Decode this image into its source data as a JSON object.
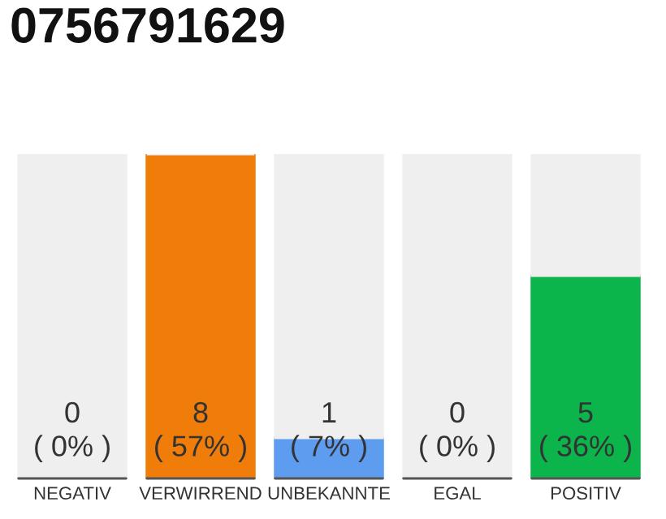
{
  "chart_data": {
    "type": "bar",
    "title": "0756791629",
    "stacked": true,
    "categories": [
      "NEGATIV",
      "VERWIRREND",
      "UNBEKANNTE",
      "EGAL",
      "POSITIV"
    ],
    "series": [
      {
        "colors": [
          "#555555",
          "#f07d0a",
          "#5e9cf0",
          "#555555",
          "#0bb54b"
        ],
        "values": [
          0,
          8,
          1,
          0,
          5
        ],
        "value_labels": [
          "0\n( 0% )",
          "8\n( 57% )",
          "1\n( 7% )",
          "0\n( 0% )",
          "5\n( 36% )"
        ]
      },
      {
        "color": "#efefef",
        "values": [
          8,
          0,
          7,
          8,
          3
        ]
      }
    ],
    "ylim": [
      0,
      8
    ],
    "tick_labels": "x"
  }
}
